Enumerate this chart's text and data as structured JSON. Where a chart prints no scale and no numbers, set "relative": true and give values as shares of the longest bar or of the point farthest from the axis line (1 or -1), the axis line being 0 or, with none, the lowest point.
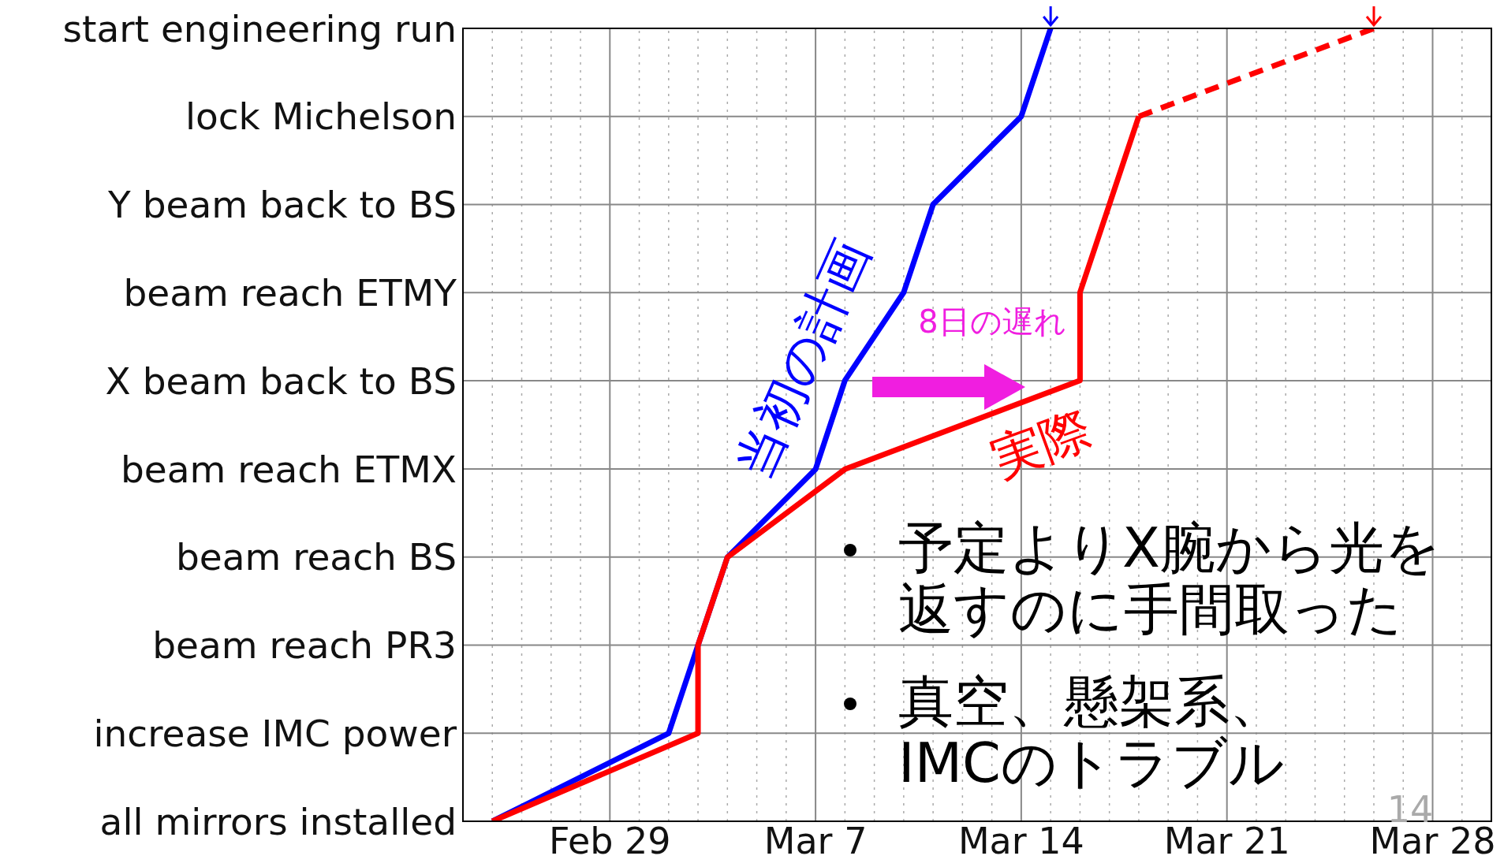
{
  "chart_data": {
    "type": "line",
    "relative": true,
    "series": [
      {
        "name": "当初の計画",
        "color": "#0000ff",
        "line_style": "solid",
        "x": [
          "--02-25",
          "--03-02",
          "--03-03",
          "--03-04",
          "--03-07",
          "--03-08",
          "--03-10",
          "--03-11",
          "--03-14",
          "--03-15"
        ],
        "values": [
          0,
          0.111,
          0.222,
          0.333,
          0.444,
          0.556,
          0.667,
          0.778,
          0.889,
          1
        ]
      },
      {
        "name": "実際",
        "color": "#ff0000",
        "line_style": "solid",
        "x": [
          "--02-25",
          "--03-03",
          "--03-03",
          "--03-04",
          "--03-08",
          "--03-16",
          "--03-16",
          "--03-17",
          "--03-18"
        ],
        "values": [
          0,
          0.111,
          0.222,
          0.333,
          0.444,
          0.556,
          0.667,
          0.778,
          0.889
        ]
      },
      {
        "color": "#ff0000",
        "line_style": "dashed",
        "x": [
          "--03-18",
          "--03-26"
        ],
        "values": [
          0.889,
          1
        ]
      }
    ],
    "xlim": [
      "--02-24",
      "--03-30"
    ],
    "xticks": [
      {
        "value": "--02-24",
        "label": null
      },
      {
        "value": "--02-25",
        "label": null
      },
      {
        "value": "--02-26",
        "label": null
      },
      {
        "value": "--02-27",
        "label": null
      },
      {
        "value": "--02-28",
        "label": null
      },
      {
        "value": "--02-29",
        "label": "Feb 29"
      },
      {
        "value": "--03-01",
        "label": null
      },
      {
        "value": "--03-02",
        "label": null
      },
      {
        "value": "--03-03",
        "label": null
      },
      {
        "value": "--03-04",
        "label": null
      },
      {
        "value": "--03-05",
        "label": null
      },
      {
        "value": "--03-06",
        "label": null
      },
      {
        "value": "--03-07",
        "label": "Mar 7"
      },
      {
        "value": "--03-08",
        "label": null
      },
      {
        "value": "--03-09",
        "label": null
      },
      {
        "value": "--03-10",
        "label": null
      },
      {
        "value": "--03-11",
        "label": null
      },
      {
        "value": "--03-12",
        "label": null
      },
      {
        "value": "--03-13",
        "label": null
      },
      {
        "value": "--03-14",
        "label": "Mar 14"
      },
      {
        "value": "--03-15",
        "label": null
      },
      {
        "value": "--03-16",
        "label": null
      },
      {
        "value": "--03-17",
        "label": null
      },
      {
        "value": "--03-18",
        "label": null
      },
      {
        "value": "--03-19",
        "label": null
      },
      {
        "value": "--03-20",
        "label": null
      },
      {
        "value": "--03-21",
        "label": "Mar 21"
      },
      {
        "value": "--03-22",
        "label": null
      },
      {
        "value": "--03-23",
        "label": null
      },
      {
        "value": "--03-24",
        "label": null
      },
      {
        "value": "--03-25",
        "label": null
      },
      {
        "value": "--03-26",
        "label": null
      },
      {
        "value": "--03-27",
        "label": null
      },
      {
        "value": "--03-28",
        "label": "Mar 28"
      },
      {
        "value": "--03-29",
        "label": null
      },
      {
        "value": "--03-30",
        "label": null
      }
    ],
    "grid": true,
    "marker": "none",
    "annotations": [
      "8日の遅れ",
      "予定よりX腕から光を返すのに手間取った",
      "真空、懸架系、IMCのトラブル",
      "14",
      "all mirrors installed",
      "increase IMC power",
      "beam reach PR3",
      "beam reach BS",
      "beam reach ETMX",
      "X beam back to BS",
      "beam reach ETMY",
      "Y beam back to BS",
      "lock Michelson",
      "start engineering run"
    ]
  }
}
